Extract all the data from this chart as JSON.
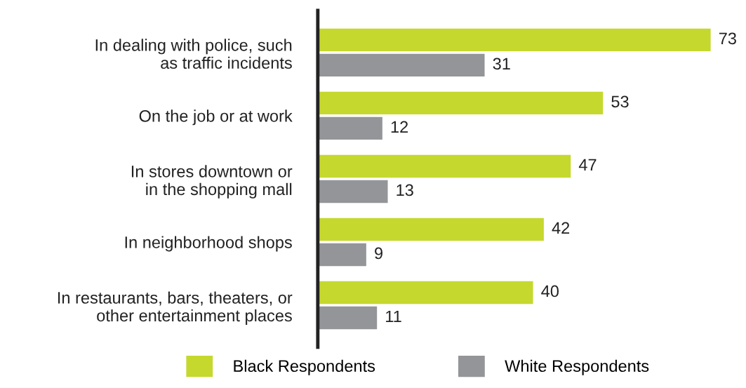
{
  "chart_data": {
    "type": "bar",
    "orientation": "horizontal",
    "categories": [
      "In dealing with police, such\nas traffic incidents",
      "On the job or at work",
      "In stores downtown or\nin the shopping mall",
      "In neighborhood shops",
      "In restaurants, bars, theaters, or\nother entertainment places"
    ],
    "series": [
      {
        "name": "Black Respondents",
        "color": "#c5d82e",
        "values": [
          73,
          53,
          47,
          42,
          40
        ]
      },
      {
        "name": "White Respondents",
        "color": "#939598",
        "values": [
          31,
          12,
          13,
          9,
          11
        ]
      }
    ],
    "data_labels": true,
    "legend": "bottom",
    "grid": false,
    "tick_labels": "y"
  }
}
